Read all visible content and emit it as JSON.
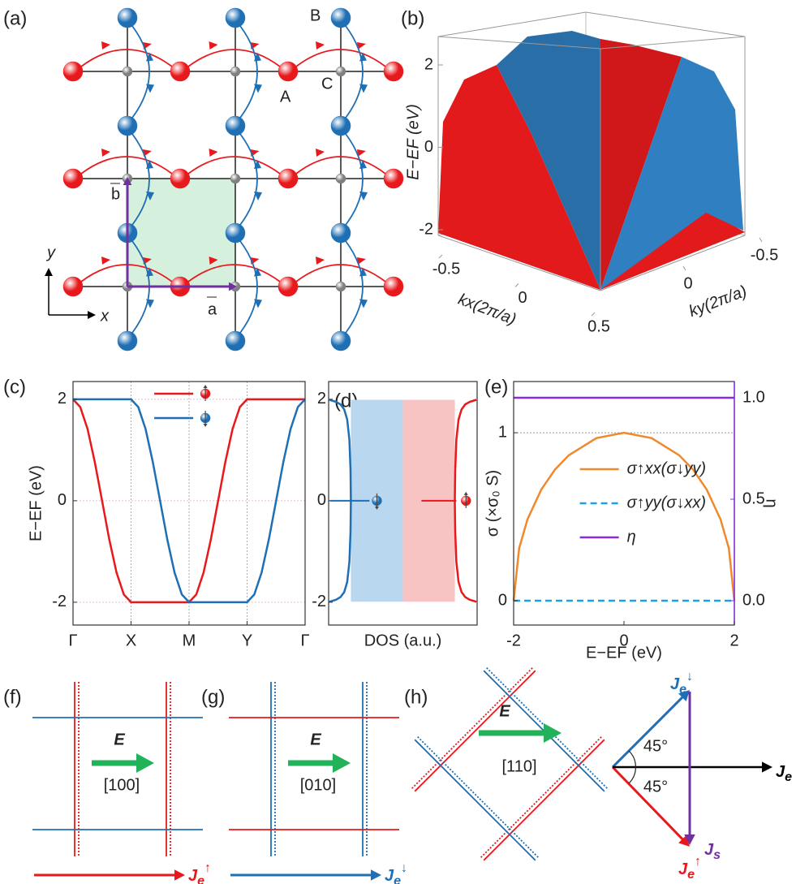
{
  "panels": {
    "a": {
      "label": "(a)",
      "atom_A": "A",
      "atom_B": "B",
      "atom_C": "C",
      "vec_a": "a",
      "vec_b": "b",
      "axis_x": "x",
      "axis_y": "y"
    },
    "b": {
      "label": "(b)"
    },
    "c": {
      "label": "(c)"
    },
    "d": {
      "label": "(d)"
    },
    "e": {
      "label": "(e)"
    },
    "f": {
      "label": "(f)",
      "field": "E",
      "direction": "[100]",
      "current": {
        "symbol": "J",
        "sub": "e",
        "spin": "↑"
      }
    },
    "g": {
      "label": "(g)",
      "field": "E",
      "direction": "[010]",
      "current": {
        "symbol": "J",
        "sub": "e",
        "spin": "↓"
      }
    },
    "h": {
      "label": "(h)",
      "field": "E",
      "direction": "[110]",
      "angles": [
        "45°",
        "45°"
      ],
      "J_down": {
        "symbol": "J",
        "sub": "e",
        "spin": "↓"
      },
      "J_up": {
        "symbol": "J",
        "sub": "e",
        "spin": "↑"
      },
      "J_e": {
        "symbol": "J",
        "sub": "e"
      },
      "J_s": {
        "symbol": "J",
        "sub": "s"
      }
    }
  },
  "chart_data": [
    {
      "type": "surface",
      "zlabel": "E−EF (eV)",
      "xlabel": "kx(2π/a)",
      "ylabel": "ky(2π/a)",
      "zticks": [
        2,
        0,
        -2
      ],
      "xticks": [
        -0.5,
        0,
        0.5
      ],
      "yticks": [
        0,
        -0.5
      ]
    },
    {
      "type": "line",
      "xlim": [
        0,
        4
      ],
      "xticks": [
        {
          "value": 0,
          "label": "Γ"
        },
        {
          "value": 1,
          "label": "X"
        },
        {
          "value": 2,
          "label": "M"
        },
        {
          "value": 3,
          "label": "Y"
        },
        {
          "value": 4,
          "label": "Γ"
        }
      ],
      "ylim": [
        -2.45,
        2.35
      ],
      "yticks": [
        2,
        0,
        -2
      ],
      "ylabel": "E−EF (eV)",
      "grid": true,
      "legend": "upper center",
      "x": [
        0,
        0.125,
        0.25,
        0.375,
        0.5,
        0.625,
        0.75,
        0.875,
        1,
        1.125,
        1.25,
        1.375,
        1.5,
        1.625,
        1.75,
        1.875,
        2,
        2.125,
        2.25,
        2.375,
        2.5,
        2.625,
        2.75,
        2.875,
        3,
        3.125,
        3.25,
        3.375,
        3.5,
        3.625,
        3.75,
        3.875,
        4
      ],
      "series": [
        {
          "color": "#e8191c",
          "spin": "up",
          "values": [
            2,
            1.848,
            1.414,
            0.765,
            0,
            -0.765,
            -1.414,
            -1.848,
            -2,
            -2,
            -2,
            -2,
            -2,
            -2,
            -2,
            -2,
            -2,
            -1.848,
            -1.414,
            -0.765,
            0,
            0.765,
            1.414,
            1.848,
            2,
            2,
            2,
            2,
            2,
            2,
            2,
            2,
            2
          ]
        },
        {
          "color": "#1f6fb4",
          "spin": "down",
          "values": [
            2,
            2,
            2,
            2,
            2,
            2,
            2,
            2,
            2,
            1.848,
            1.414,
            0.765,
            0,
            -0.765,
            -1.414,
            -1.848,
            -2,
            -2,
            -2,
            -2,
            -2,
            -2,
            -2,
            -2,
            -2,
            -1.848,
            -1.414,
            -0.765,
            0,
            0.765,
            1.414,
            1.848,
            2
          ]
        }
      ]
    },
    {
      "type": "dos",
      "xlim": [
        -1,
        1
      ],
      "ylim": [
        -2.45,
        2.35
      ],
      "yticks": [
        2,
        0,
        -2
      ],
      "xlabel": "DOS (a.u.)",
      "y": [
        -1.99,
        -1.95,
        -1.9,
        -1.8,
        -1.6,
        -1.2,
        -0.6,
        0,
        0.6,
        1.2,
        1.6,
        1.8,
        1.9,
        1.95,
        1.99
      ],
      "series": [
        {
          "color": "#1f6fb4",
          "spin": "down",
          "shade": "#b9d7ef",
          "values": [
            -0.99,
            -0.9,
            -0.84,
            -0.79,
            -0.75,
            -0.72,
            -0.705,
            -0.7,
            -0.705,
            -0.72,
            -0.75,
            -0.79,
            -0.84,
            -0.9,
            -0.99
          ]
        },
        {
          "color": "#e8191c",
          "spin": "up",
          "shade": "#f7c3c3",
          "values": [
            0.99,
            0.9,
            0.84,
            0.79,
            0.75,
            0.72,
            0.705,
            0.7,
            0.705,
            0.72,
            0.75,
            0.79,
            0.84,
            0.9,
            0.99
          ]
        }
      ]
    },
    {
      "type": "line",
      "xlim": [
        -2,
        2
      ],
      "xticks": [
        -2,
        0,
        2
      ],
      "ylim": [
        -0.145,
        1.305
      ],
      "yticks": [
        0,
        1
      ],
      "y2lim": [
        -0.12,
        1.08
      ],
      "y2ticks": [
        {
          "value": 0,
          "label": "0.0"
        },
        {
          "value": 0.5,
          "label": "0.5"
        },
        {
          "value": 1,
          "label": "1.0"
        }
      ],
      "y2color": "#8a2be2",
      "xlabel": "E−EF (eV)",
      "ylabel": "σ (×σ₀ S)",
      "y2label": "η",
      "hlines": [
        1
      ],
      "legend": "center",
      "x": [
        -2,
        -1.9,
        -1.75,
        -1.5,
        -1.25,
        -1,
        -0.5,
        0,
        0.5,
        1,
        1.25,
        1.5,
        1.75,
        1.9,
        2
      ],
      "series": [
        {
          "name": "σ↑xx(σ↓yy)",
          "color": "#f0892b",
          "values": [
            0,
            0.312,
            0.484,
            0.661,
            0.781,
            0.866,
            0.968,
            1,
            0.968,
            0.866,
            0.781,
            0.661,
            0.484,
            0.312,
            0
          ]
        },
        {
          "name": "σ↑yy(σ↓xx)",
          "color": "#1e9fe8",
          "dash": true,
          "values": [
            0,
            0,
            0,
            0,
            0,
            0,
            0,
            0,
            0,
            0,
            0,
            0,
            0,
            0,
            0
          ]
        },
        {
          "name": "η",
          "color": "#8a2be2",
          "axis": "y2",
          "values": [
            1,
            1,
            1,
            1,
            1,
            1,
            1,
            1,
            1,
            1,
            1,
            1,
            1,
            1,
            1
          ]
        }
      ]
    }
  ]
}
